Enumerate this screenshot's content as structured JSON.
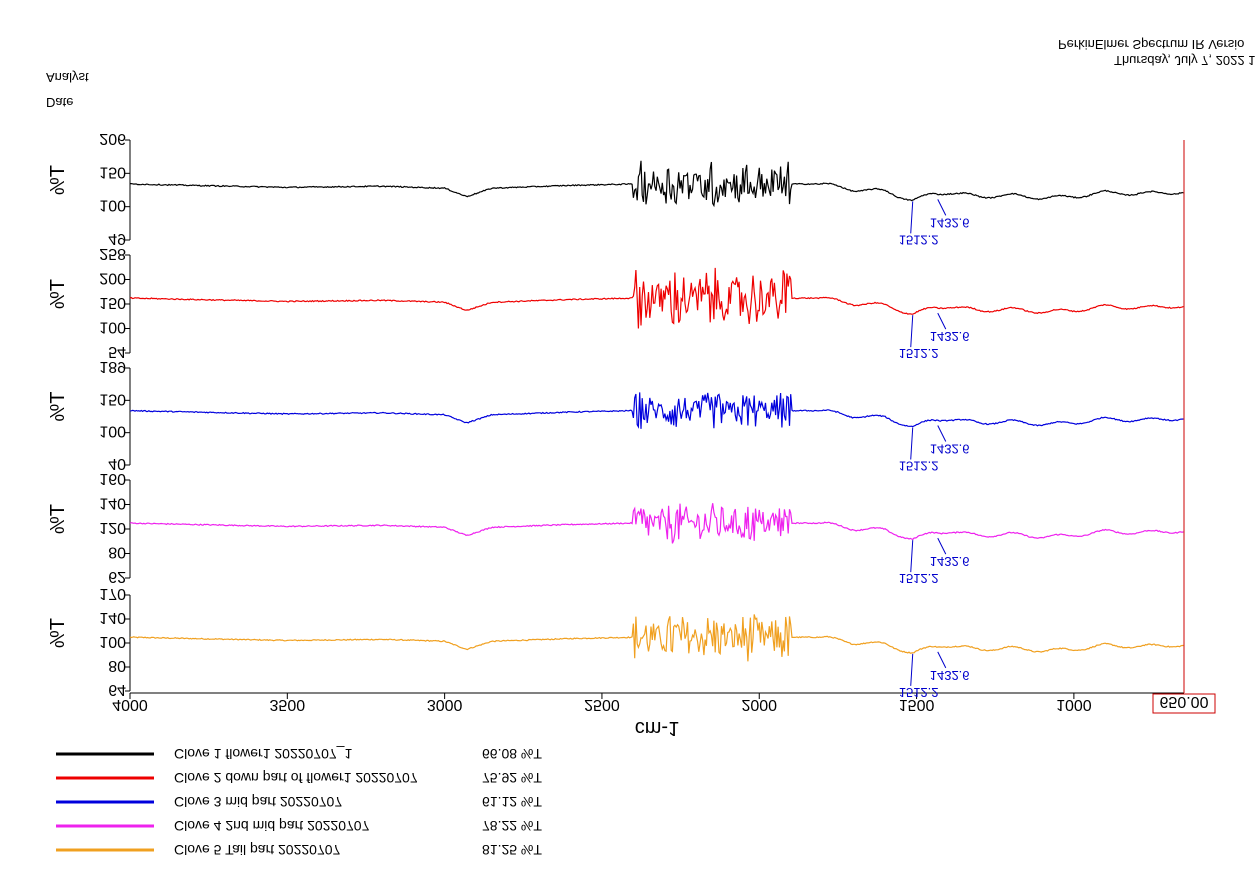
{
  "legend": [
    {
      "name": "Clove 5 Tail part 20220707",
      "value": "81.25 %T",
      "color": "#f0a020"
    },
    {
      "name": "Clove 4 2nd mid part  20220707",
      "value": "78.22 %T",
      "color": "#ee22ee"
    },
    {
      "name": "Clove 3 mid part  20220707",
      "value": "61.12 %T",
      "color": "#0000dd"
    },
    {
      "name": "Clove 2 down part of flower1 20220707",
      "value": "75.92 %T",
      "color": "#ee0000"
    },
    {
      "name": "Clove 1 flower1 20220707_1",
      "value": "66.08 %T",
      "color": "#000000"
    }
  ],
  "x_axis": {
    "title": "cm-1",
    "ticks": [
      "4000",
      "3500",
      "3000",
      "2500",
      "2000",
      "1500",
      "1000"
    ],
    "end_label": "650.00"
  },
  "footer": {
    "date_label": "Date",
    "analyst_label": "Analyst",
    "timestamp": "Thursday, July 7, 2022 1",
    "software": "PerkinElmer Spectrum IR Versio"
  },
  "chart_data": {
    "type": "line",
    "orientation": "rendered upside-down (vertically flipped)",
    "xlabel": "cm-1",
    "xlim": [
      4000,
      650
    ],
    "x_reversed": true,
    "panels": [
      {
        "series": "Clove 5 Tail part 20220707",
        "color": "#f0a020",
        "ylabel": "T%",
        "yticks": [
          "64",
          "80",
          "100",
          "140",
          "170"
        ],
        "ylim": [
          64,
          170
        ],
        "peaks": [
          "1512.2",
          "1432.6"
        ]
      },
      {
        "series": "Clove 4 2nd mid part  20220707",
        "color": "#ee22ee",
        "ylabel": "T%",
        "yticks": [
          "62",
          "80",
          "120",
          "140",
          "160"
        ],
        "ylim": [
          62,
          160
        ],
        "peaks": [
          "1512.2",
          "1432.6"
        ]
      },
      {
        "series": "Clove 3 mid part  20220707",
        "color": "#0000dd",
        "ylabel": "T%",
        "yticks": [
          "40",
          "100",
          "150",
          "189"
        ],
        "ylim": [
          40,
          189
        ],
        "peaks": [
          "1512.2",
          "1432.6"
        ]
      },
      {
        "series": "Clove 2 down part of flower1 20220707",
        "color": "#ee0000",
        "ylabel": "T%",
        "yticks": [
          "54",
          "100",
          "150",
          "200",
          "258"
        ],
        "ylim": [
          54,
          258
        ],
        "peaks": [
          "1512.2",
          "1432.6"
        ]
      },
      {
        "series": "Clove 1 flower1 20220707_1",
        "color": "#000000",
        "ylabel": "T%",
        "yticks": [
          "49",
          "100",
          "150",
          "206"
        ],
        "ylim": [
          49,
          206
        ],
        "peaks": [
          "1512.2",
          "1432.6"
        ]
      }
    ],
    "shape": {
      "baseline_points": [
        [
          4000,
          0.5
        ],
        [
          3800,
          0.45
        ],
        [
          3500,
          0.38
        ],
        [
          3200,
          0.42
        ],
        [
          3000,
          0.35
        ],
        [
          2930,
          0.05
        ],
        [
          2850,
          0.35
        ],
        [
          2600,
          0.45
        ],
        [
          2400,
          0.5
        ],
        [
          2000,
          0.5
        ],
        [
          1800,
          0.5
        ],
        [
          1700,
          0.3
        ],
        [
          1600,
          0.25
        ],
        [
          1512,
          -0.1
        ],
        [
          1450,
          0.15
        ],
        [
          1400,
          0.2
        ],
        [
          1300,
          0.05
        ],
        [
          1200,
          0.1
        ],
        [
          1100,
          0.0
        ],
        [
          1000,
          0.05
        ],
        [
          900,
          0.2
        ],
        [
          800,
          0.15
        ],
        [
          700,
          0.2
        ],
        [
          650,
          0.2
        ]
      ],
      "noise_region": [
        2400,
        1900
      ],
      "noise_amplitudes": [
        1.3,
        1.1,
        1.0,
        1.6,
        1.2
      ]
    }
  }
}
